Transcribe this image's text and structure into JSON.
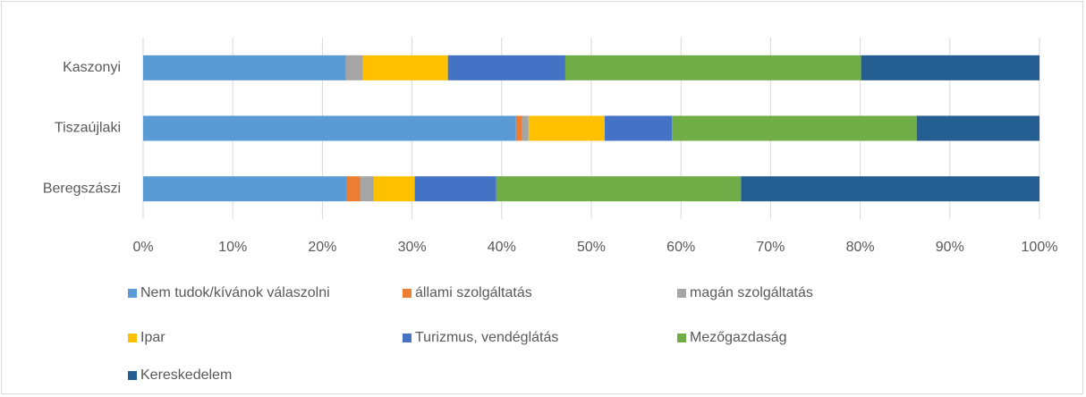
{
  "chart_data": {
    "type": "stacked_barh",
    "categories": [
      "Beregszászi",
      "Tiszaújlaki",
      "Kaszonyi"
    ],
    "series": [
      {
        "name": "Nem tudok/kívánok válaszolni",
        "color": "#5b9bd5",
        "values": [
          22.7,
          41.6,
          22.6
        ]
      },
      {
        "name": "állami szolgáltatás",
        "color": "#ed7d31",
        "values": [
          1.5,
          0.7,
          0
        ]
      },
      {
        "name": "magán szolgáltatás",
        "color": "#a5a5a5",
        "values": [
          1.5,
          0.7,
          1.9
        ]
      },
      {
        "name": "Ipar",
        "color": "#ffc000",
        "values": [
          4.6,
          8.5,
          9.5
        ]
      },
      {
        "name": "Turizmus, vendéglátás",
        "color": "#4472c4",
        "values": [
          9.1,
          7.5,
          13.1
        ]
      },
      {
        "name": "Mezőgazdaság",
        "color": "#70ad47",
        "values": [
          27.3,
          27.3,
          33.0
        ]
      },
      {
        "name": "Kereskedelem",
        "color": "#255e91",
        "values": [
          33.3,
          13.7,
          19.9
        ]
      }
    ],
    "xlim": [
      0,
      100
    ],
    "xticks": [
      {
        "value": 0,
        "label": "0%"
      },
      {
        "value": 10,
        "label": "10%"
      },
      {
        "value": 20,
        "label": "20%"
      },
      {
        "value": 30,
        "label": "30%"
      },
      {
        "value": 40,
        "label": "40%"
      },
      {
        "value": 50,
        "label": "50%"
      },
      {
        "value": 60,
        "label": "60%"
      },
      {
        "value": 70,
        "label": "70%"
      },
      {
        "value": 80,
        "label": "80%"
      },
      {
        "value": 90,
        "label": "90%"
      },
      {
        "value": 100,
        "label": "100%"
      }
    ],
    "grid": true,
    "legend": "bottom"
  }
}
